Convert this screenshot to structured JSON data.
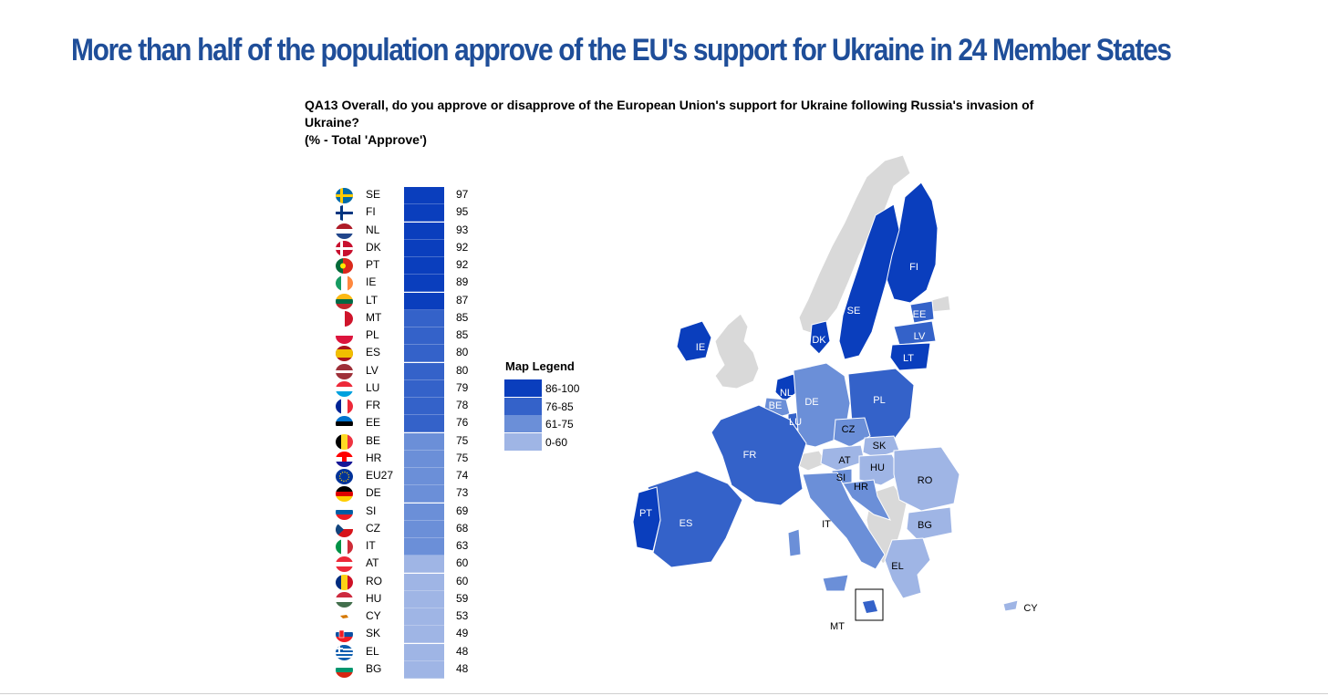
{
  "title": "More than half of the population approve of the EU's support for Ukraine in 24 Member States",
  "question": {
    "line1": "QA13 Overall, do you approve or disapprove of the European Union's support for Ukraine following Russia's invasion of",
    "line2": "Ukraine?",
    "line3": "(% - Total 'Approve')"
  },
  "colors": {
    "c86_100": "#0a3ebd",
    "c76_85": "#3462c9",
    "c61_75": "#6b8fd8",
    "c0_60": "#9fb5e5",
    "no_data": "#d9d9d9",
    "title": "#1f4e99"
  },
  "legend": {
    "title": "Map Legend",
    "items": [
      {
        "label": "86-100",
        "color": "#0a3ebd"
      },
      {
        "label": "76-85",
        "color": "#3462c9"
      },
      {
        "label": "61-75",
        "color": "#6b8fd8"
      },
      {
        "label": "0-60",
        "color": "#9fb5e5"
      }
    ]
  },
  "chart_data": {
    "type": "bar",
    "categories": [
      "SE",
      "FI",
      "NL",
      "DK",
      "PT",
      "IE",
      "LT",
      "MT",
      "PL",
      "ES",
      "LV",
      "LU",
      "FR",
      "EE",
      "BE",
      "HR",
      "EU27",
      "DE",
      "SI",
      "CZ",
      "IT",
      "AT",
      "RO",
      "HU",
      "CY",
      "SK",
      "EL",
      "BG"
    ],
    "values": [
      97,
      95,
      93,
      92,
      92,
      89,
      87,
      85,
      85,
      80,
      80,
      79,
      78,
      76,
      75,
      75,
      74,
      73,
      69,
      68,
      63,
      60,
      60,
      59,
      53,
      49,
      48,
      48
    ]
  },
  "map_labels": {
    "FI": "FI",
    "SE": "SE",
    "EE": "EE",
    "LV": "LV",
    "LT": "LT",
    "IE": "IE",
    "DK": "DK",
    "NL": "NL",
    "BE": "BE",
    "LU": "LU",
    "DE": "DE",
    "PL": "PL",
    "CZ": "CZ",
    "SK": "SK",
    "AT": "AT",
    "HU": "HU",
    "SI": "SI",
    "HR": "HR",
    "RO": "RO",
    "BG": "BG",
    "FR": "FR",
    "ES": "ES",
    "PT": "PT",
    "IT": "IT",
    "EL": "EL",
    "MT": "MT",
    "CY": "CY"
  }
}
